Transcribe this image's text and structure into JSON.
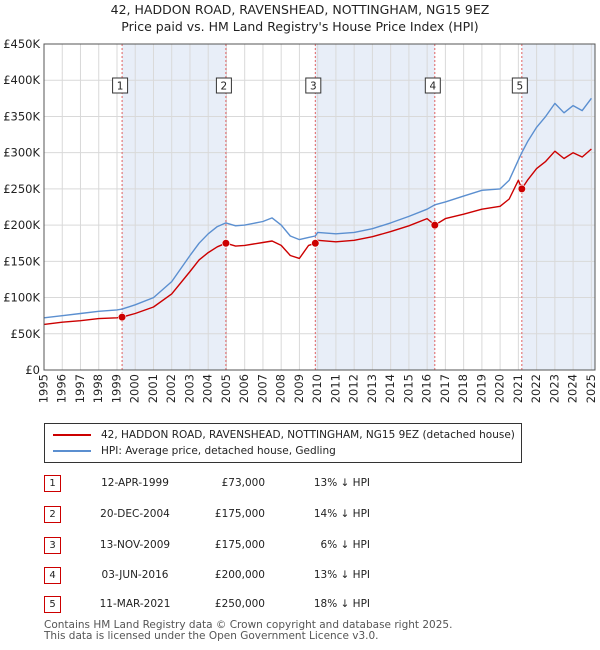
{
  "title_line1": "42, HADDON ROAD, RAVENSHEAD, NOTTINGHAM, NG15 9EZ",
  "title_line2": "Price paid vs. HM Land Registry's House Price Index (HPI)",
  "colors": {
    "property": "#cc0000",
    "hpi": "#5b8fd0",
    "shade": "#e8eef8",
    "grid": "#d9d9d9",
    "vline": "#e06060"
  },
  "legend": {
    "property_label": "42, HADDON ROAD, RAVENSHEAD, NOTTINGHAM, NG15 9EZ (detached house)",
    "hpi_label": "HPI: Average price, detached house, Gedling"
  },
  "sales": [
    {
      "num": "1",
      "date": "12-APR-1999",
      "price": "£73,000",
      "hpi": "13% ↓ HPI"
    },
    {
      "num": "2",
      "date": "20-DEC-2004",
      "price": "£175,000",
      "hpi": "14% ↓ HPI"
    },
    {
      "num": "3",
      "date": "13-NOV-2009",
      "price": "£175,000",
      "hpi": "6% ↓ HPI"
    },
    {
      "num": "4",
      "date": "03-JUN-2016",
      "price": "£200,000",
      "hpi": "13% ↓ HPI"
    },
    {
      "num": "5",
      "date": "11-MAR-2021",
      "price": "£250,000",
      "hpi": "18% ↓ HPI"
    }
  ],
  "footer_line1": "Contains HM Land Registry data © Crown copyright and database right 2025.",
  "footer_line2": "This data is licensed under the Open Government Licence v3.0.",
  "chart_data": {
    "type": "line",
    "title": "42, HADDON ROAD, RAVENSHEAD, NOTTINGHAM, NG15 9EZ — Price paid vs. HM Land Registry's House Price Index (HPI)",
    "xlabel": "",
    "ylabel": "",
    "xlim": [
      1995,
      2025.2
    ],
    "ylim": [
      0,
      450000
    ],
    "x_ticks": [
      "1995",
      "1996",
      "1997",
      "1998",
      "1999",
      "2000",
      "2001",
      "2002",
      "2003",
      "2004",
      "2005",
      "2006",
      "2007",
      "2008",
      "2009",
      "2010",
      "2011",
      "2012",
      "2013",
      "2014",
      "2015",
      "2016",
      "2017",
      "2018",
      "2019",
      "2020",
      "2021",
      "2022",
      "2023",
      "2024",
      "2025"
    ],
    "y_ticks": [
      {
        "value": 0,
        "label": "£0"
      },
      {
        "value": 50000,
        "label": "£50K"
      },
      {
        "value": 100000,
        "label": "£100K"
      },
      {
        "value": 150000,
        "label": "£150K"
      },
      {
        "value": 200000,
        "label": "£200K"
      },
      {
        "value": 250000,
        "label": "£250K"
      },
      {
        "value": 300000,
        "label": "£300K"
      },
      {
        "value": 350000,
        "label": "£350K"
      },
      {
        "value": 400000,
        "label": "£400K"
      },
      {
        "value": 450000,
        "label": "£450K"
      }
    ],
    "grid": true,
    "shaded_periods": [
      [
        1999.28,
        2004.97
      ],
      [
        2009.87,
        2016.42
      ],
      [
        2021.19,
        2025.2
      ]
    ],
    "sale_markers": [
      {
        "label": "1",
        "x": 1999.28,
        "y": 73000
      },
      {
        "label": "2",
        "x": 2004.97,
        "y": 175000
      },
      {
        "label": "3",
        "x": 2009.87,
        "y": 175000
      },
      {
        "label": "4",
        "x": 2016.42,
        "y": 200000
      },
      {
        "label": "5",
        "x": 2021.19,
        "y": 250000
      }
    ],
    "series": [
      {
        "name": "HPI: Average price, detached house, Gedling",
        "x": [
          1995,
          1996,
          1997,
          1998,
          1999,
          1999.28,
          2000,
          2001,
          2002,
          2003,
          2003.5,
          2004,
          2004.5,
          2004.97,
          2005.5,
          2006,
          2007,
          2007.5,
          2008,
          2008.5,
          2009,
          2009.5,
          2009.87,
          2010,
          2011,
          2012,
          2013,
          2014,
          2015,
          2016,
          2016.42,
          2017,
          2018,
          2019,
          2020,
          2020.5,
          2021,
          2021.19,
          2021.5,
          2022,
          2022.5,
          2023,
          2023.5,
          2024,
          2024.5,
          2025
        ],
        "values": [
          72000,
          75000,
          78000,
          81000,
          83000,
          84000,
          90000,
          100000,
          122000,
          158000,
          175000,
          188000,
          198000,
          203000,
          199000,
          200000,
          205000,
          210000,
          200000,
          185000,
          180000,
          183000,
          185000,
          190000,
          188000,
          190000,
          195000,
          203000,
          212000,
          222000,
          228000,
          232000,
          240000,
          248000,
          250000,
          262000,
          290000,
          300000,
          315000,
          335000,
          350000,
          368000,
          355000,
          365000,
          358000,
          375000
        ]
      },
      {
        "name": "42, HADDON ROAD, RAVENSHEAD, NOTTINGHAM, NG15 9EZ (detached house)",
        "x": [
          1995,
          1996,
          1997,
          1998,
          1999,
          1999.28,
          2000,
          2001,
          2002,
          2003,
          2003.5,
          2004,
          2004.5,
          2004.97,
          2005.5,
          2006,
          2007,
          2007.5,
          2008,
          2008.5,
          2009,
          2009.5,
          2009.87,
          2010,
          2011,
          2012,
          2013,
          2014,
          2015,
          2016,
          2016.42,
          2017,
          2018,
          2019,
          2020,
          2020.5,
          2021,
          2021.19,
          2021.5,
          2022,
          2022.5,
          2023,
          2023.5,
          2024,
          2024.5,
          2025
        ],
        "values": [
          63000,
          66000,
          68000,
          71000,
          72000,
          73000,
          78000,
          87000,
          105000,
          136000,
          152000,
          162000,
          170000,
          175000,
          171000,
          172000,
          176000,
          178000,
          172000,
          158000,
          154000,
          172000,
          175000,
          179000,
          177000,
          179000,
          184000,
          191000,
          199000,
          209000,
          200000,
          209000,
          215000,
          222000,
          226000,
          236000,
          262000,
          250000,
          262000,
          278000,
          288000,
          302000,
          292000,
          300000,
          294000,
          305000
        ]
      }
    ]
  }
}
